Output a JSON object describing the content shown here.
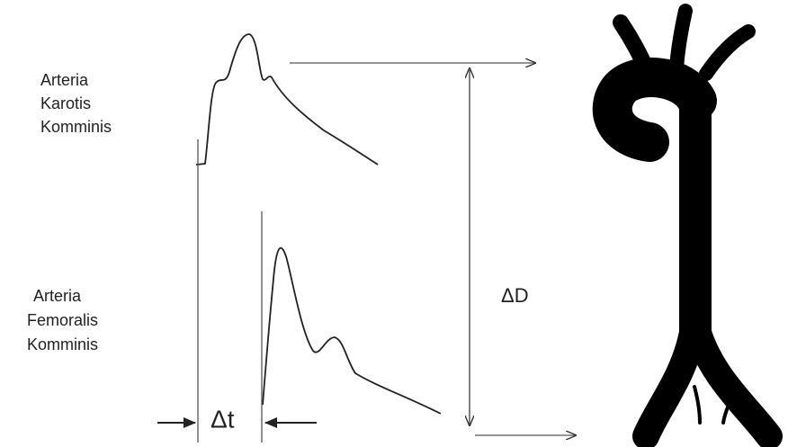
{
  "labels": {
    "carotid": [
      "Arteria",
      "Karotis",
      "Komminis"
    ],
    "femoral": [
      "Arteria",
      "Femoralis",
      "Komminis"
    ]
  },
  "delta_t": "Δt",
  "delta_d": "ΔD"
}
